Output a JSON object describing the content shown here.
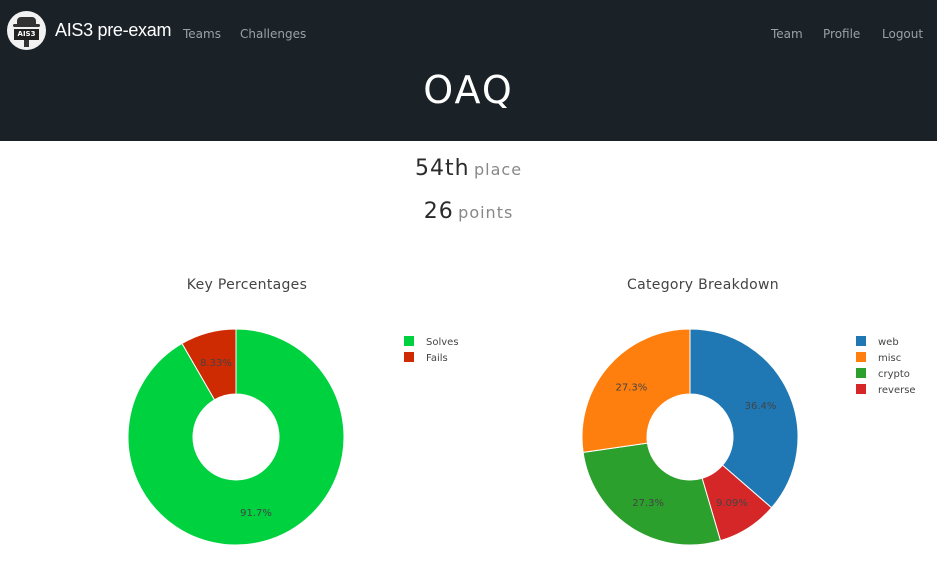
{
  "navbar": {
    "brand_name": "AIS3 pre-exam",
    "logo_text": "AIS3",
    "left_links": [
      "Teams",
      "Challenges"
    ],
    "right_links": [
      "Team",
      "Profile",
      "Logout"
    ],
    "background": "#1b2227"
  },
  "team": {
    "name": "OAQ",
    "place_value": "54th",
    "place_label": "place",
    "points_value": "26",
    "points_label": "points"
  },
  "chart_data": [
    {
      "type": "pie",
      "donut": true,
      "title": "Key Percentages",
      "legend": "right",
      "slices": [
        {
          "name": "Solves",
          "value": 91.7,
          "label": "91.7%",
          "color": "#00d13f"
        },
        {
          "name": "Fails",
          "value": 8.33,
          "label": "8.33%",
          "color": "#cf2b03"
        }
      ]
    },
    {
      "type": "pie",
      "donut": true,
      "title": "Category Breakdown",
      "legend": "right",
      "slices": [
        {
          "name": "web",
          "value": 36.4,
          "label": "36.4%",
          "color": "#1f77b4"
        },
        {
          "name": "reverse",
          "value": 9.09,
          "label": "9.09%",
          "color": "#d62728"
        },
        {
          "name": "crypto",
          "value": 27.3,
          "label": "27.3%",
          "color": "#2ca02c"
        },
        {
          "name": "misc",
          "value": 27.3,
          "label": "27.3%",
          "color": "#ff7f0e"
        }
      ],
      "legend_order": [
        "web",
        "misc",
        "crypto",
        "reverse"
      ]
    }
  ]
}
